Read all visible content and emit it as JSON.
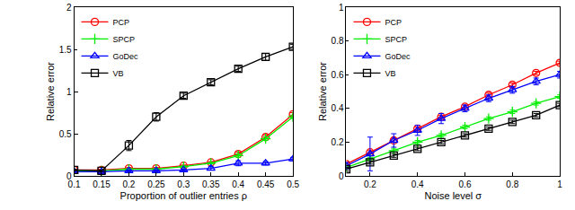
{
  "chart_data": [
    {
      "type": "line",
      "xlabel": "Proportion of outlier entries ρ",
      "ylabel": "Relative error",
      "x": [
        0.1,
        0.15,
        0.2,
        0.25,
        0.3,
        0.35,
        0.4,
        0.45,
        0.5
      ],
      "xlim": [
        0.1,
        0.5
      ],
      "xticks": [
        0.1,
        0.15,
        0.2,
        0.25,
        0.3,
        0.35,
        0.4,
        0.45,
        0.5
      ],
      "ylim": [
        0,
        2
      ],
      "yticks": [
        0,
        0.5,
        1,
        1.5,
        2
      ],
      "grid": false,
      "legend": "upper left",
      "series": [
        {
          "name": "PCP",
          "color": "#ff0000",
          "marker": "circle",
          "values": [
            0.07,
            0.07,
            0.09,
            0.09,
            0.12,
            0.16,
            0.26,
            0.46,
            0.73
          ],
          "errors": [
            0.01,
            0.01,
            0.01,
            0.01,
            0.01,
            0.01,
            0.02,
            0.02,
            0.02
          ]
        },
        {
          "name": "SPCP",
          "color": "#00ee00",
          "marker": "plus",
          "values": [
            0.06,
            0.06,
            0.08,
            0.08,
            0.11,
            0.15,
            0.24,
            0.44,
            0.7
          ],
          "errors": [
            0.01,
            0.01,
            0.01,
            0.01,
            0.01,
            0.01,
            0.02,
            0.02,
            0.02
          ]
        },
        {
          "name": "GoDec",
          "color": "#0000ff",
          "marker": "triangle",
          "values": [
            0.05,
            0.05,
            0.06,
            0.06,
            0.07,
            0.09,
            0.15,
            0.15,
            0.2
          ],
          "errors": [
            0.01,
            0.01,
            0.01,
            0.01,
            0.01,
            0.02,
            0.03,
            0.02,
            0.02
          ]
        },
        {
          "name": "VB",
          "color": "#000000",
          "marker": "square",
          "values": [
            0.07,
            0.06,
            0.36,
            0.7,
            0.95,
            1.11,
            1.27,
            1.41,
            1.53
          ],
          "errors": [
            0.01,
            0.01,
            0.06,
            0.05,
            0.03,
            0.03,
            0.03,
            0.04,
            0.03
          ]
        }
      ]
    },
    {
      "type": "line",
      "xlabel": "Noise level σ",
      "ylabel": "Relative error",
      "x": [
        0.1,
        0.2,
        0.3,
        0.4,
        0.5,
        0.6,
        0.7,
        0.8,
        0.9,
        1
      ],
      "xlim": [
        0.1,
        1
      ],
      "xticks": [
        0.2,
        0.4,
        0.6,
        0.8,
        1
      ],
      "ylim": [
        0,
        1
      ],
      "yticks": [
        0,
        0.2,
        0.4,
        0.6,
        0.8,
        1
      ],
      "grid": false,
      "legend": "upper left",
      "series": [
        {
          "name": "PCP",
          "color": "#ff0000",
          "marker": "circle",
          "values": [
            0.07,
            0.14,
            0.21,
            0.28,
            0.35,
            0.41,
            0.48,
            0.54,
            0.61,
            0.67
          ],
          "errors": [
            0.01,
            0.01,
            0.01,
            0.01,
            0.01,
            0.01,
            0.01,
            0.01,
            0.01,
            0.01
          ]
        },
        {
          "name": "SPCP",
          "color": "#00ee00",
          "marker": "plus",
          "values": [
            0.05,
            0.1,
            0.15,
            0.2,
            0.24,
            0.29,
            0.34,
            0.38,
            0.43,
            0.47
          ],
          "errors": [
            0.01,
            0.01,
            0.01,
            0.01,
            0.01,
            0.01,
            0.01,
            0.01,
            0.01,
            0.01
          ]
        },
        {
          "name": "GoDec",
          "color": "#0000ff",
          "marker": "triangle",
          "values": [
            0.06,
            0.13,
            0.21,
            0.27,
            0.34,
            0.4,
            0.46,
            0.51,
            0.56,
            0.6
          ],
          "errors": [
            0.02,
            0.1,
            0.04,
            0.03,
            0.03,
            0.02,
            0.02,
            0.02,
            0.02,
            0.02
          ]
        },
        {
          "name": "VB",
          "color": "#000000",
          "marker": "square",
          "values": [
            0.04,
            0.08,
            0.12,
            0.16,
            0.2,
            0.24,
            0.28,
            0.32,
            0.36,
            0.42
          ],
          "errors": [
            0.01,
            0.01,
            0.01,
            0.01,
            0.01,
            0.01,
            0.01,
            0.01,
            0.01,
            0.01
          ]
        }
      ]
    }
  ]
}
